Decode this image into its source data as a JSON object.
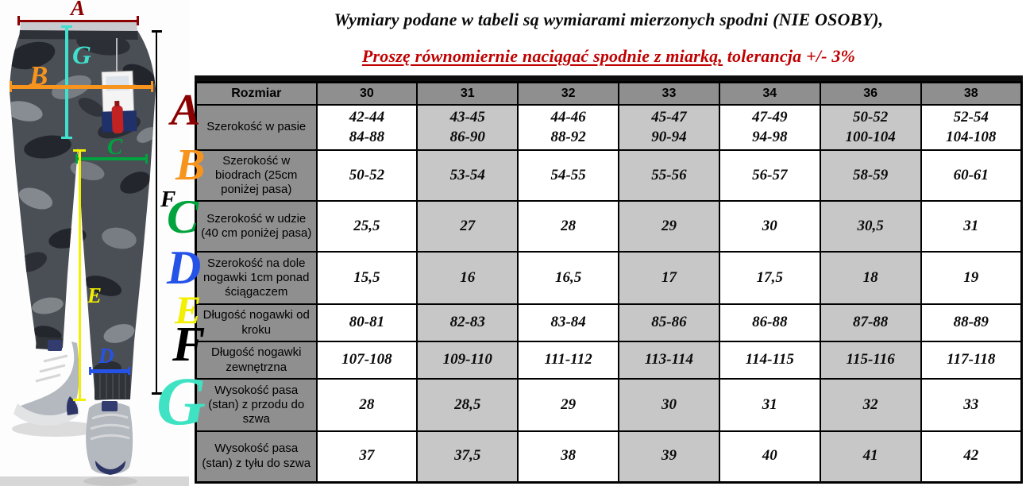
{
  "titles": {
    "line1": "Wymiary podane w tabeli są wymiarami mierzonych spodni (NIE OSOBY),",
    "line2_underlined": "Proszę równomiernie naciągać spodnie z miarką,",
    "line2_plain": " tolerancja +/- 3%"
  },
  "figure": {
    "description": "camo jogger pants with measurement lines",
    "markers": [
      {
        "letter": "A",
        "color": "#8b0000"
      },
      {
        "letter": "G",
        "color": "#3fe0cd"
      },
      {
        "letter": "B",
        "color": "#f7941d"
      },
      {
        "letter": "C",
        "color": "#00a33d"
      },
      {
        "letter": "E",
        "color": "#f2ef00"
      },
      {
        "letter": "F",
        "color": "#000000"
      },
      {
        "letter": "D",
        "color": "#2553e8"
      }
    ]
  },
  "row_letters": [
    {
      "letter": "A",
      "color": "#8b0000"
    },
    {
      "letter": "B",
      "color": "#f7941d"
    },
    {
      "letter": "C",
      "color": "#00a33d"
    },
    {
      "letter": "D",
      "color": "#2553e8"
    },
    {
      "letter": "E",
      "color": "#f2ef00"
    },
    {
      "letter": "F",
      "color": "#000000"
    },
    {
      "letter": "G",
      "color": "#3fe3c3"
    }
  ],
  "table": {
    "corner_label": "Rozmiar",
    "sizes": [
      "30",
      "31",
      "32",
      "33",
      "34",
      "36",
      "38"
    ],
    "rows": [
      {
        "letter": "A",
        "label": "Szerokość w pasie",
        "values": [
          "42-44\n84-88",
          "43-45\n86-90",
          "44-46\n88-92",
          "45-47\n90-94",
          "47-49\n94-98",
          "50-52\n100-104",
          "52-54\n104-108"
        ]
      },
      {
        "letter": "B",
        "label": "Szerokość w biodrach (25cm poniżej pasa)",
        "values": [
          "50-52",
          "53-54",
          "54-55",
          "55-56",
          "56-57",
          "58-59",
          "60-61"
        ]
      },
      {
        "letter": "C",
        "label": "Szerokość w udzie (40 cm poniżej pasa)",
        "values": [
          "25,5",
          "27",
          "28",
          "29",
          "30",
          "30,5",
          "31"
        ]
      },
      {
        "letter": "D",
        "label": "Szerokość na dole nogawki 1cm ponad ściągaczem",
        "values": [
          "15,5",
          "16",
          "16,5",
          "17",
          "17,5",
          "18",
          "19"
        ]
      },
      {
        "letter": "E",
        "label": "Długość nogawki od kroku",
        "values": [
          "80-81",
          "82-83",
          "83-84",
          "85-86",
          "86-88",
          "87-88",
          "88-89"
        ]
      },
      {
        "letter": "F",
        "label": "Długość nogawki zewnętrzna",
        "values": [
          "107-108",
          "109-110",
          "111-112",
          "113-114",
          "114-115",
          "115-116",
          "117-118"
        ]
      },
      {
        "letter": "G",
        "label": "Wysokość pasa (stan) z przodu do szwa",
        "values": [
          "28",
          "28,5",
          "29",
          "30",
          "31",
          "32",
          "33"
        ]
      },
      {
        "letter": "G",
        "label": "Wysokość pasa (stan) z tyłu do szwa",
        "values": [
          "37",
          "37,5",
          "38",
          "39",
          "40",
          "41",
          "42"
        ]
      }
    ]
  },
  "colors": {
    "header_bg": "#8f8f8f",
    "stripe_bg": "#c7c7c7",
    "title_red": "#c00000",
    "top_bar": "#0d0d0d"
  }
}
